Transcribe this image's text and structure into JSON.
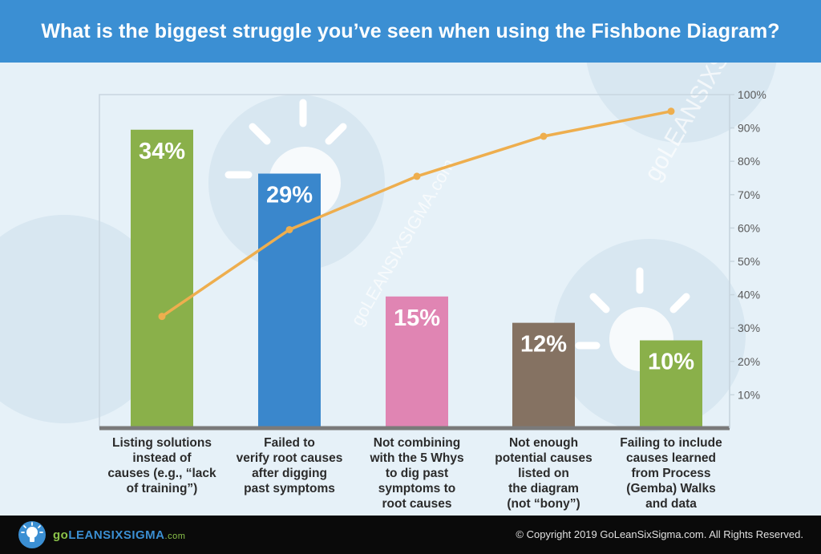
{
  "header": {
    "title": "What is the biggest struggle you’ve seen when using the Fishbone Diagram?"
  },
  "chart_data": {
    "type": "bar",
    "categories": [
      "Listing solutions instead of causes (e.g., “lack of training”)",
      "Failed to verify root causes after digging past symptoms",
      "Not combining with the 5 Whys to dig past symptoms to root causes",
      "Not enough potential causes listed on the diagram (not “bony”)",
      "Failing to include causes learned from Process (Gemba) Walks and data"
    ],
    "category_lines": [
      [
        "Listing solutions",
        "instead of",
        "causes (e.g., “lack",
        "of training”)"
      ],
      [
        "Failed to",
        "verify root causes",
        "after digging",
        "past symptoms"
      ],
      [
        "Not combining",
        "with the 5 Whys",
        "to dig past",
        "symptoms to",
        "root causes"
      ],
      [
        "Not enough",
        "potential causes",
        "listed on",
        "the diagram",
        "(not “bony”)"
      ],
      [
        "Failing to include",
        "causes learned",
        "from Process",
        "(Gemba) Walks",
        "and data"
      ]
    ],
    "values": [
      34,
      29,
      15,
      12,
      10
    ],
    "value_labels": [
      "34%",
      "29%",
      "15%",
      "12%",
      "10%"
    ],
    "bar_colors": [
      "#8ab04a",
      "#3a87cc",
      "#e085b3",
      "#857262",
      "#8ab04a"
    ],
    "cumulative": [
      34,
      63,
      78,
      90,
      100
    ],
    "line_series_points": [
      33.5,
      59.5,
      75.5,
      87.5,
      95
    ],
    "line_color": "#eeae4e",
    "y2_ticks": [
      "10%",
      "20%",
      "30%",
      "40%",
      "50%",
      "60%",
      "70%",
      "80%",
      "90%",
      "100%"
    ],
    "ylim": [
      0,
      38
    ],
    "y2lim": [
      0,
      100
    ],
    "title": "",
    "xlabel": "",
    "ylabel": "",
    "grid": false,
    "legend": "none"
  },
  "watermark": {
    "text": "goLEANSIXSIGMA.com"
  },
  "footer": {
    "logo_go": "go",
    "logo_lss": "LEANSIXSIGMA",
    "logo_com": ".com",
    "copyright": "© Copyright 2019 GoLeanSixSigma.com. All Rights Reserved."
  }
}
